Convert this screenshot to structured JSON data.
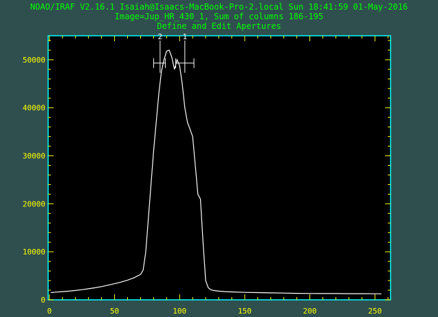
{
  "header": {
    "line1": "NOAO/IRAF V2.16.1 Isaiah@Isaacs-MacBook-Pro-2.local Sun 18:41:59 01-May-2016",
    "line2": "Image=Jup_HR_430_1, Sum of columns 186-195",
    "line3": "Define and Edit Apertures"
  },
  "colors": {
    "background": "#2f4f4f",
    "header_text": "#00ff00",
    "axes_frame": "#00ffff",
    "ticks": "#ffff00",
    "curve": "#ffffff"
  },
  "chart_data": {
    "type": "line",
    "title": "",
    "xlabel": "",
    "ylabel": "",
    "xlim": [
      -1,
      262
    ],
    "ylim": [
      0,
      55000
    ],
    "xticks": [
      0,
      50,
      100,
      150,
      200,
      250
    ],
    "yticks": [
      0,
      10000,
      20000,
      30000,
      40000,
      50000
    ],
    "grid": false,
    "series": [
      {
        "x": [
          1,
          5,
          10,
          15,
          20,
          25,
          30,
          35,
          40,
          45,
          50,
          55,
          60,
          65,
          70,
          72,
          74,
          76,
          78,
          80,
          82,
          84,
          86,
          88,
          90,
          92,
          94,
          96,
          98,
          100,
          102,
          104,
          106,
          108,
          110,
          112,
          114,
          116,
          118,
          120,
          122,
          124,
          126,
          130,
          135,
          140,
          150,
          160,
          170,
          180,
          190,
          200,
          210,
          220,
          230,
          240,
          250,
          255
        ],
        "values": [
          1500,
          1600,
          1700,
          1800,
          1950,
          2100,
          2300,
          2500,
          2750,
          3050,
          3350,
          3700,
          4100,
          4600,
          5300,
          6200,
          10000,
          17000,
          24000,
          31000,
          37000,
          43000,
          47500,
          50000,
          51800,
          52000,
          50500,
          48000,
          50000,
          48800,
          45000,
          40000,
          37000,
          35500,
          34000,
          28000,
          22000,
          21000,
          12000,
          4000,
          2500,
          2100,
          1950,
          1800,
          1700,
          1650,
          1550,
          1500,
          1450,
          1400,
          1350,
          1320,
          1300,
          1300,
          1280,
          1270,
          1260,
          1250
        ]
      }
    ],
    "apertures": [
      {
        "label": "1",
        "center": 104,
        "low": 97,
        "high": 111
      },
      {
        "label": "2",
        "center": 85,
        "low": 80,
        "high": 89
      }
    ]
  }
}
